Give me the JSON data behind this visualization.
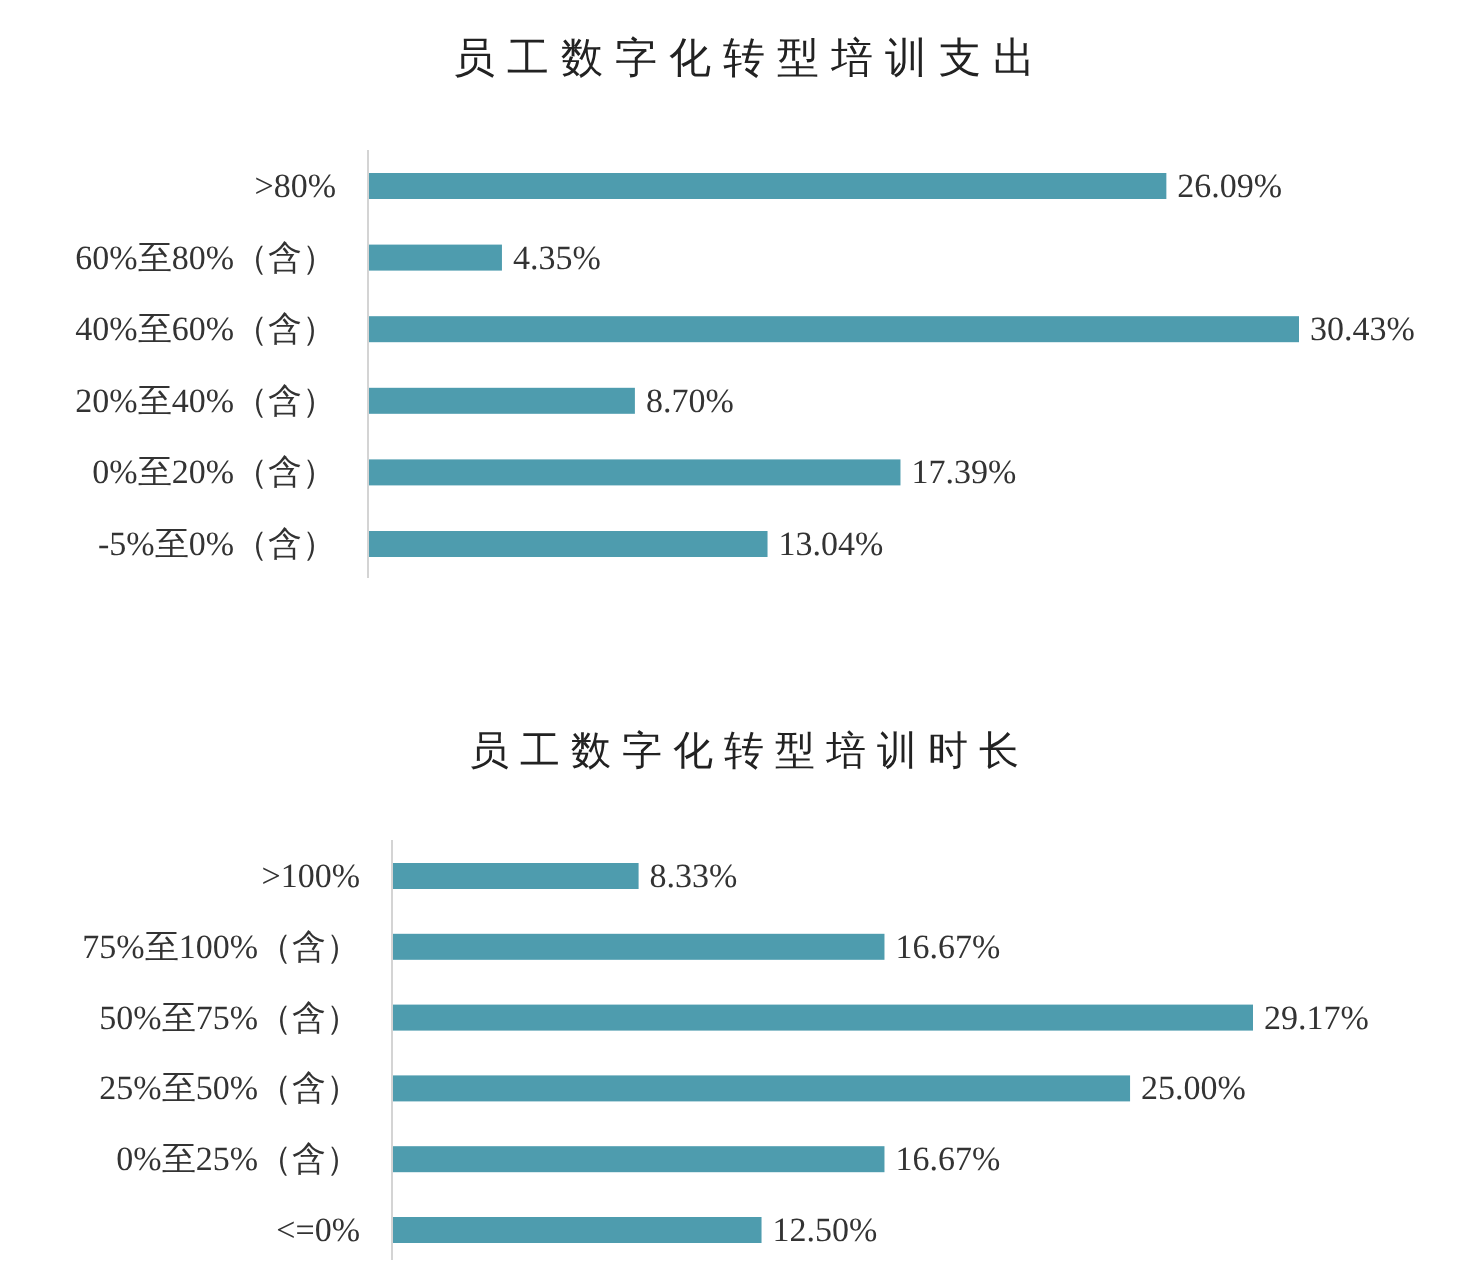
{
  "chart_data": [
    {
      "type": "bar",
      "orientation": "horizontal",
      "title": "员工数字化转型培训支出",
      "categories": [
        ">80%",
        "60%至80%（含）",
        "40%至60%（含）",
        "20%至40%（含）",
        "0%至20%（含）",
        "-5%至0%（含）"
      ],
      "values": [
        26.09,
        4.35,
        30.43,
        8.7,
        17.39,
        13.04
      ],
      "value_labels": [
        "26.09%",
        "4.35%",
        "30.43%",
        "8.70%",
        "17.39%",
        "13.04%"
      ],
      "color": "#4e9cae"
    },
    {
      "type": "bar",
      "orientation": "horizontal",
      "title": "员工数字化转型培训时长",
      "categories": [
        ">100%",
        "75%至100%（含）",
        "50%至75%（含）",
        "25%至50%（含）",
        "0%至25%（含）",
        "<=0%"
      ],
      "values": [
        8.33,
        16.67,
        29.17,
        25.0,
        16.67,
        12.5
      ],
      "value_labels": [
        "8.33%",
        "16.67%",
        "29.17%",
        "25.00%",
        "16.67%",
        "12.50%"
      ],
      "color": "#4e9cae"
    }
  ]
}
